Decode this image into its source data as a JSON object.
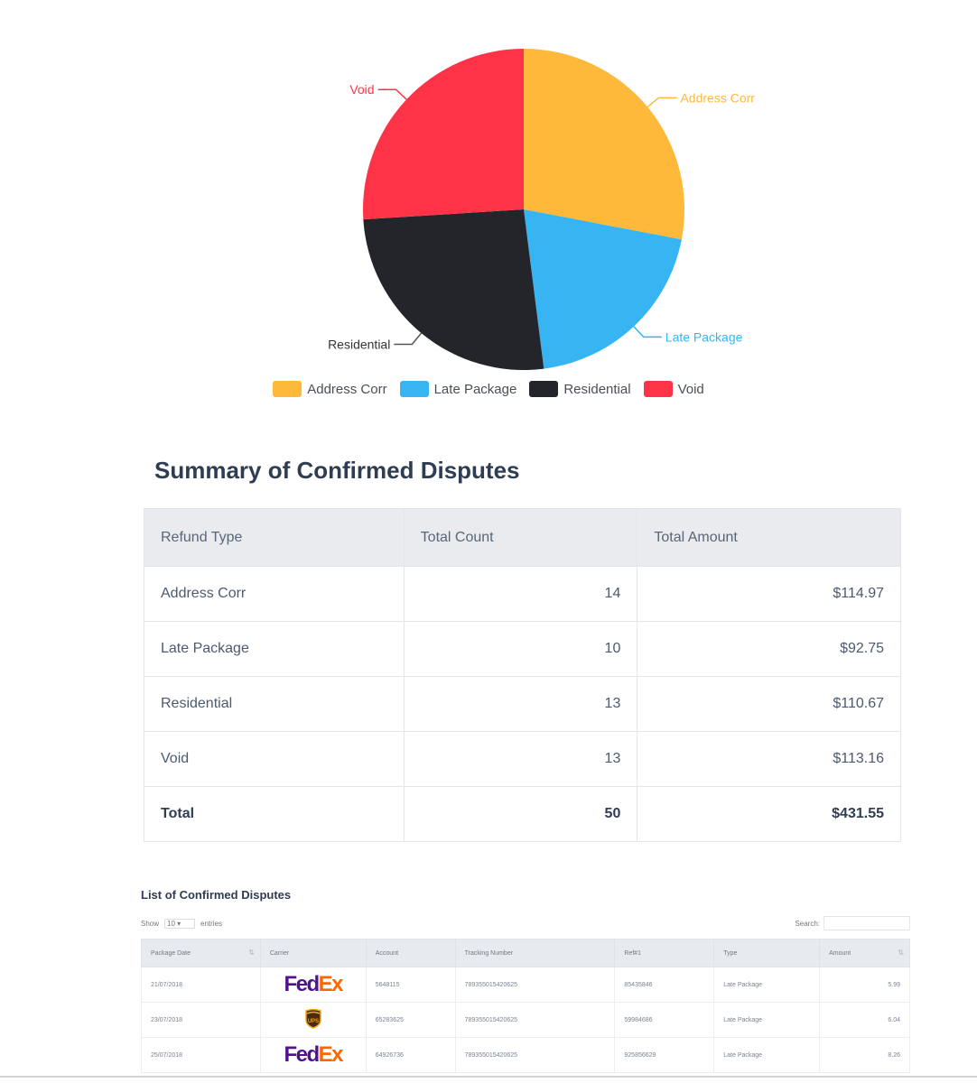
{
  "chart_data": {
    "type": "pie",
    "categories": [
      "Address Corr",
      "Late Package",
      "Residential",
      "Void"
    ],
    "values": [
      14,
      10,
      13,
      13
    ],
    "colors": [
      "#FFB93A",
      "#36B5F2",
      "#24252B",
      "#FF3347"
    ],
    "legend_position": "bottom"
  },
  "legend": {
    "items": [
      {
        "label": "Address Corr",
        "color": "#FFB93A"
      },
      {
        "label": "Late Package",
        "color": "#36B5F2"
      },
      {
        "label": "Residential",
        "color": "#24252B"
      },
      {
        "label": "Void",
        "color": "#FF3347"
      }
    ]
  },
  "summary": {
    "title": "Summary of Confirmed Disputes",
    "headers": [
      "Refund Type",
      "Total Count",
      "Total Amount"
    ],
    "rows": [
      {
        "type": "Address Corr",
        "count": "14",
        "amount": "$114.97"
      },
      {
        "type": "Late Package",
        "count": "10",
        "amount": "$92.75"
      },
      {
        "type": "Residential",
        "count": "13",
        "amount": "$110.67"
      },
      {
        "type": "Void",
        "count": "13",
        "amount": "$113.16"
      }
    ],
    "total": {
      "label": "Total",
      "count": "50",
      "amount": "$431.55"
    }
  },
  "list": {
    "title": "List of Confirmed Disputes",
    "show_label": "Show",
    "show_value": "10",
    "entries_label": "entries",
    "search_label": "Search:",
    "headers": [
      "Package Date",
      "Carrier",
      "Account",
      "Tracking Number",
      "Ref#1",
      "Type",
      "Amount"
    ],
    "rows": [
      {
        "date": "21/07/2018",
        "carrier": "FedEx",
        "account": "5648115",
        "tracking": "789355015420625",
        "ref": "85435846",
        "type": "Late Package",
        "amount": "5.99"
      },
      {
        "date": "23/07/2018",
        "carrier": "UPS",
        "account": "65283625",
        "tracking": "789355015420625",
        "ref": "59984686",
        "type": "Late Package",
        "amount": "6.04"
      },
      {
        "date": "25/07/2018",
        "carrier": "FedEx",
        "account": "64926736",
        "tracking": "789355015420625",
        "ref": "925856629",
        "type": "Late Package",
        "amount": "8.26"
      }
    ]
  },
  "brand": {
    "fedex_left": "Fed",
    "fedex_right": "Ex",
    "ups": "UPS"
  }
}
